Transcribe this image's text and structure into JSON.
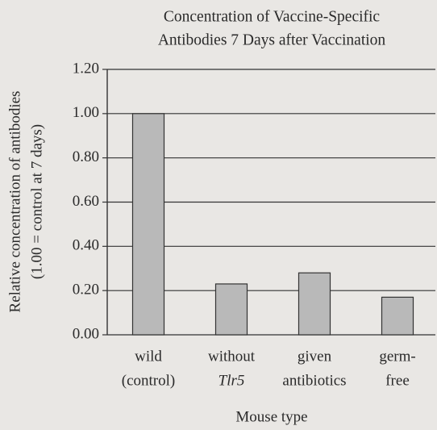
{
  "chart_data": {
    "type": "bar",
    "title": [
      "Concentration of Vaccine-Specific",
      "Antibodies 7 Days after Vaccination"
    ],
    "y_label": [
      "Relative concentration of antibodies",
      "(1.00 = control at 7 days)"
    ],
    "x_label": "Mouse type",
    "categories": [
      [
        "wild",
        "(control)"
      ],
      [
        "without",
        "Tlr5"
      ],
      [
        "given",
        "antibiotics"
      ],
      [
        "germ-",
        "free"
      ]
    ],
    "values": [
      1.0,
      0.23,
      0.28,
      0.17
    ],
    "color": "#b9b9b9",
    "ylim": [
      0,
      1.2
    ],
    "yticks": [
      {
        "value": 0,
        "label": "0.00"
      },
      {
        "value": 0.2,
        "label": "0.20"
      },
      {
        "value": 0.4,
        "label": "0.40"
      },
      {
        "value": 0.6,
        "label": "0.60"
      },
      {
        "value": 0.8,
        "label": "0.80"
      },
      {
        "value": 1.0,
        "label": "1.00"
      },
      {
        "value": 1.2,
        "label": "1.20"
      }
    ],
    "grid": true
  }
}
